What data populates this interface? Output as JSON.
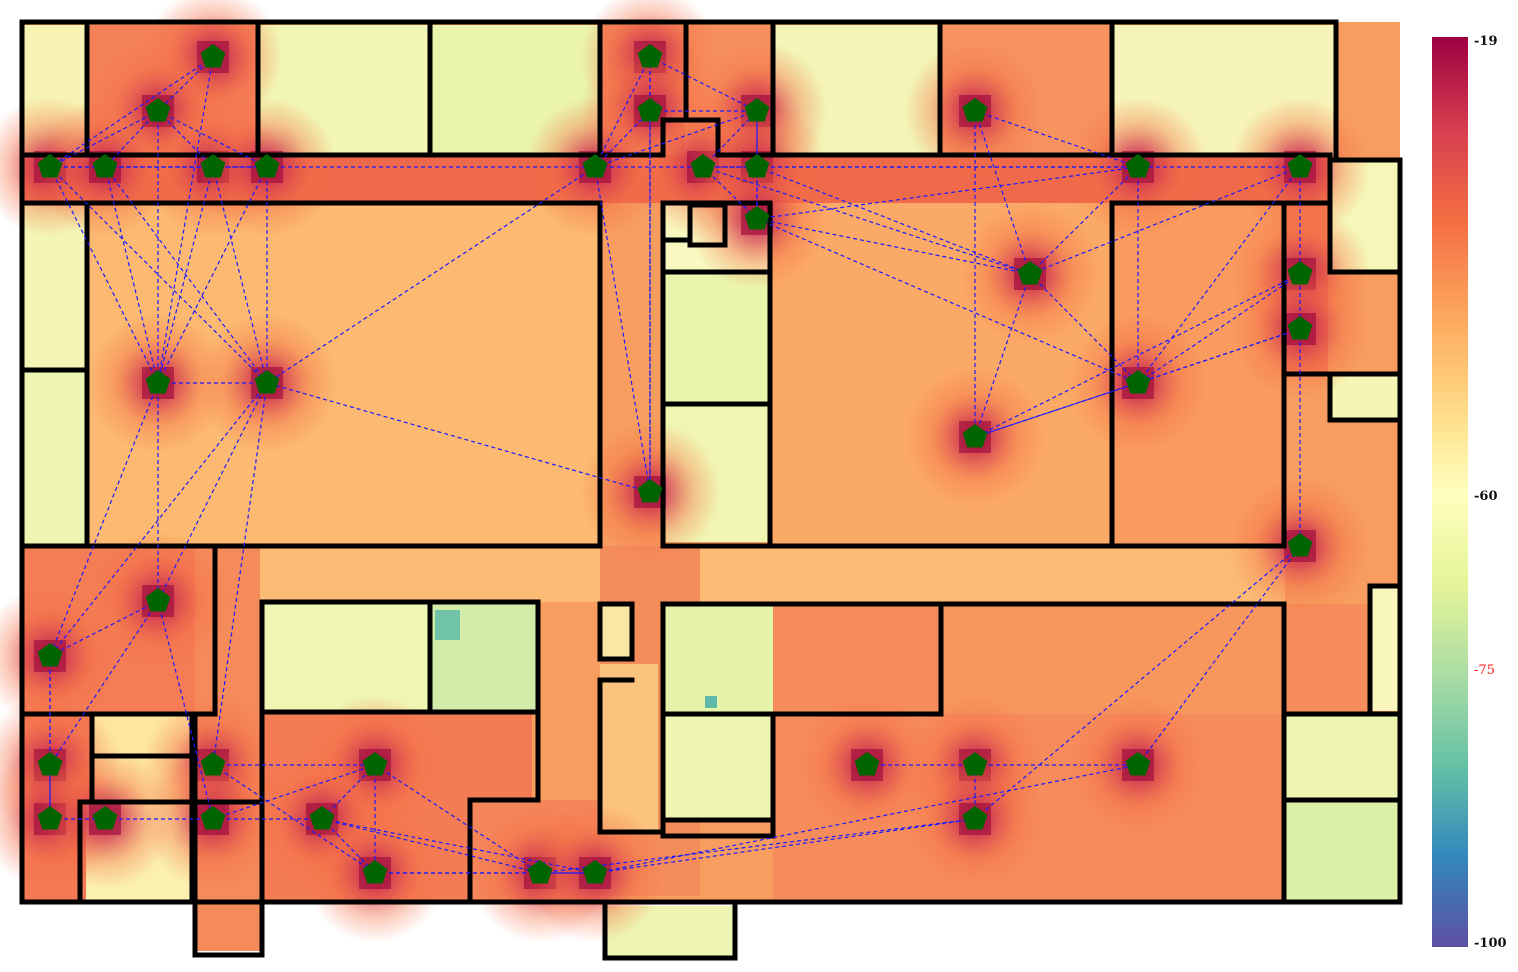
{
  "colorbar": {
    "labels": {
      "max": "-19",
      "mid": "-60",
      "threshold": "-75",
      "min": "-100"
    },
    "range": [
      -100,
      -19
    ],
    "threshold_color": "#ff1a1a",
    "colormap": [
      "#5e4fa2",
      "#3288bd",
      "#66c2a5",
      "#abdda4",
      "#e6f598",
      "#ffffbf",
      "#fee08b",
      "#fdae61",
      "#f46d43",
      "#d53e4f",
      "#9e0142"
    ]
  },
  "colors": {
    "wall": "#000000",
    "link": "#1a1aff",
    "access_point": "#006400"
  },
  "legend_icons": {
    "access_point": "pentagon-icon"
  }
}
